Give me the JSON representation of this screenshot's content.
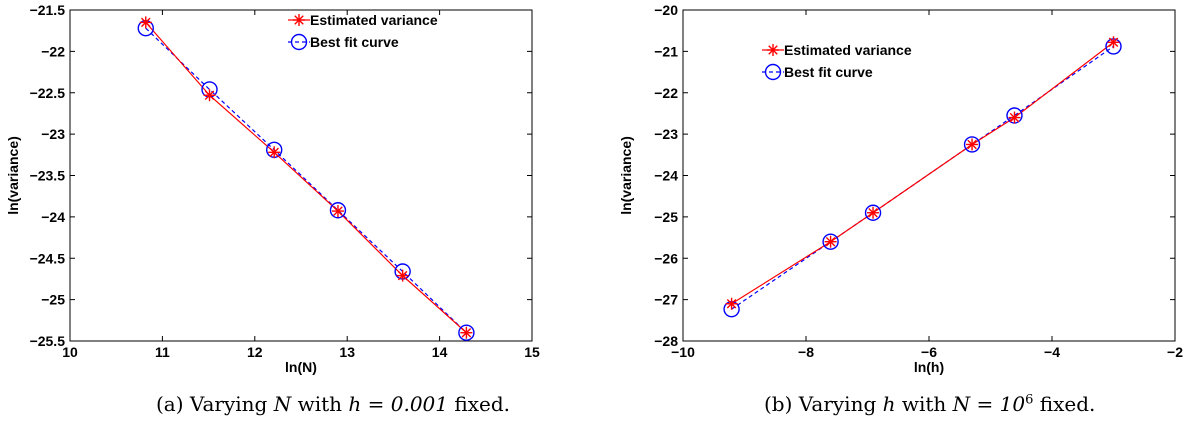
{
  "chart_data": [
    {
      "type": "line",
      "xlabel": "ln(N)",
      "ylabel": "ln(variance)",
      "xlim": [
        10,
        15
      ],
      "ylim": [
        -25.5,
        -21.5
      ],
      "xticks": [
        10,
        11,
        12,
        13,
        14,
        15
      ],
      "yticks": [
        -21.5,
        -22,
        -22.5,
        -23,
        -23.5,
        -24,
        -24.5,
        -25,
        -25.5
      ],
      "xtick_labels": [
        "10",
        "11",
        "12",
        "13",
        "14",
        "15"
      ],
      "ytick_labels": [
        "−21.5",
        "−22",
        "−22.5",
        "−23",
        "−23.5",
        "−24",
        "−24.5",
        "−25",
        "−25.5"
      ],
      "grid": false,
      "legend_position": "top-right",
      "series": [
        {
          "name": "Estimated variance",
          "color": "#ff0000",
          "marker": "star",
          "line": "solid",
          "x": [
            10.82,
            11.51,
            12.21,
            12.9,
            13.6,
            14.29
          ],
          "y": [
            -21.65,
            -22.53,
            -23.22,
            -23.93,
            -24.71,
            -25.4
          ]
        },
        {
          "name": "Best fit curve",
          "color": "#0000ff",
          "marker": "circle",
          "line": "dashed",
          "x": [
            10.82,
            11.51,
            12.21,
            12.9,
            13.6,
            14.29
          ],
          "y": [
            -21.72,
            -22.46,
            -23.19,
            -23.92,
            -24.66,
            -25.4
          ]
        }
      ],
      "caption": {
        "label": "(a)",
        "text": "Varying",
        "var": "N",
        "mid": "with",
        "math": "h = 0.001",
        "end": "fixed."
      }
    },
    {
      "type": "line",
      "xlabel": "ln(h)",
      "ylabel": "ln(variance)",
      "xlim": [
        -10,
        -2
      ],
      "ylim": [
        -28,
        -20
      ],
      "xticks": [
        -10,
        -8,
        -6,
        -4,
        -2
      ],
      "yticks": [
        -20,
        -21,
        -22,
        -23,
        -24,
        -25,
        -26,
        -27,
        -28
      ],
      "xtick_labels": [
        "−10",
        "−8",
        "−6",
        "−4",
        "−2"
      ],
      "ytick_labels": [
        "−20",
        "−21",
        "−22",
        "−23",
        "−24",
        "−25",
        "−26",
        "−27",
        "−28"
      ],
      "grid": false,
      "legend_position": "top-left",
      "series": [
        {
          "name": "Estimated variance",
          "color": "#ff0000",
          "marker": "star",
          "line": "solid",
          "x": [
            -9.21,
            -7.6,
            -6.91,
            -5.3,
            -4.61,
            -3.0
          ],
          "y": [
            -27.1,
            -25.6,
            -24.9,
            -23.25,
            -22.6,
            -20.78
          ]
        },
        {
          "name": "Best fit curve",
          "color": "#0000ff",
          "marker": "circle",
          "line": "dashed",
          "x": [
            -9.21,
            -7.6,
            -6.91,
            -5.3,
            -4.61,
            -3.0
          ],
          "y": [
            -27.23,
            -25.6,
            -24.9,
            -23.25,
            -22.55,
            -20.88
          ]
        }
      ],
      "caption": {
        "label": "(b)",
        "text": "Varying",
        "var": "h",
        "mid": "with",
        "math": "N = 10",
        "sup": "6",
        "end": "fixed."
      }
    }
  ]
}
